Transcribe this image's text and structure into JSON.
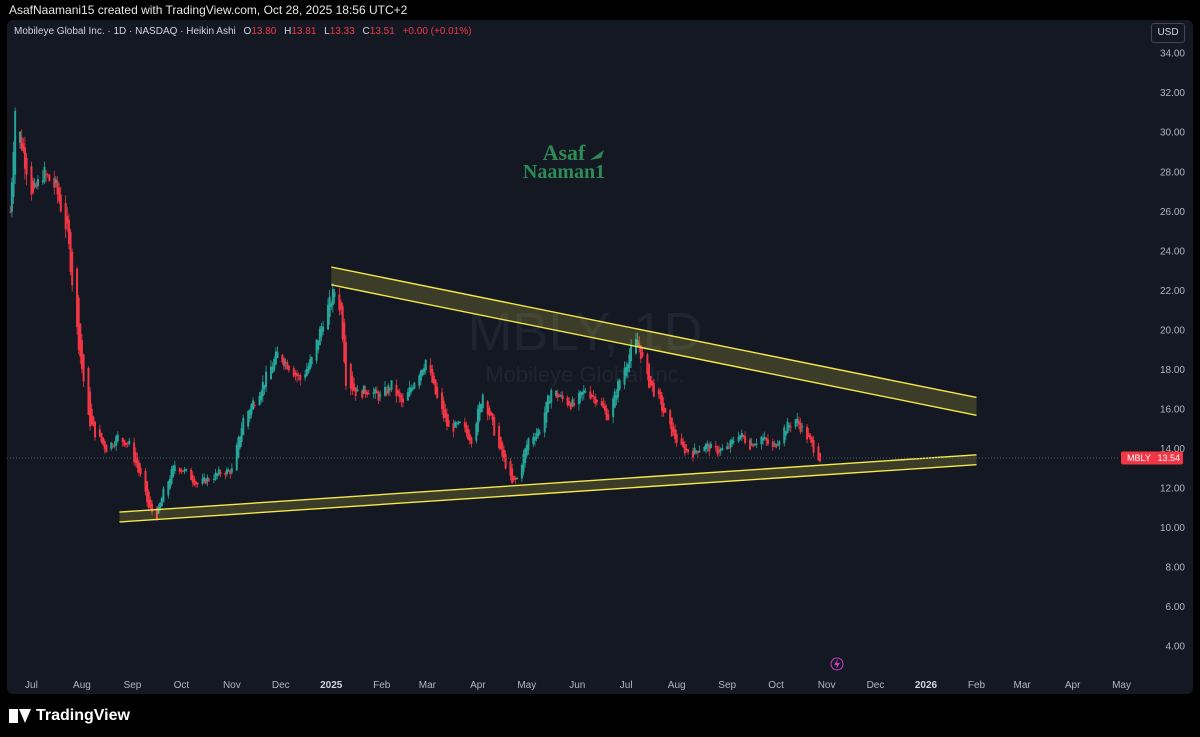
{
  "header": {
    "created_by": "AsafNaamani15 created with TradingView.com, Oct 28, 2025 18:56 UTC+2"
  },
  "legend": {
    "symbol_desc": "Mobileye Global Inc. · 1D · NASDAQ · Heikin Ashi",
    "o_label": "O",
    "o_value": "13.80",
    "h_label": "H",
    "h_value": "13.81",
    "l_label": "L",
    "l_value": "13.33",
    "c_label": "C",
    "c_value": "13.51",
    "change": "+0.00 (+0.01%)"
  },
  "currency_button": "USD",
  "watermark": {
    "symbol": "MBLY, 1D",
    "name": "Mobileye Global Inc.",
    "logo_line1": "Asaf",
    "logo_line2": "Naaman1"
  },
  "price_tag": {
    "symbol": "MBLY",
    "value": "13.54"
  },
  "colors": {
    "background": "#141823",
    "up": "#26a69a",
    "down": "#f23645",
    "channel": "#f5e84a",
    "channel_fill": "rgba(245,232,74,0.18)"
  },
  "footer": {
    "brand": "TradingView"
  },
  "chart_data": {
    "type": "candlestick",
    "chart_style": "Heikin Ashi",
    "timeframe": "1D",
    "yaxis": {
      "ticks": [
        "4.00",
        "6.00",
        "8.00",
        "10.00",
        "12.00",
        "14.00",
        "16.00",
        "18.00",
        "20.00",
        "22.00",
        "24.00",
        "26.00",
        "28.00",
        "30.00",
        "32.00",
        "34.00"
      ],
      "range": [
        2.2,
        35.2
      ]
    },
    "xaxis": {
      "ticks": [
        {
          "label": "Jul",
          "date": "2024-07-01"
        },
        {
          "label": "Aug",
          "date": "2024-08-01"
        },
        {
          "label": "Sep",
          "date": "2024-09-01"
        },
        {
          "label": "Oct",
          "date": "2024-10-01"
        },
        {
          "label": "Nov",
          "date": "2024-11-01"
        },
        {
          "label": "Dec",
          "date": "2024-12-01"
        },
        {
          "label": "2025",
          "date": "2025-01-01"
        },
        {
          "label": "Feb",
          "date": "2025-02-01"
        },
        {
          "label": "Mar",
          "date": "2025-03-01"
        },
        {
          "label": "Apr",
          "date": "2025-04-01"
        },
        {
          "label": "May",
          "date": "2025-05-01"
        },
        {
          "label": "Jun",
          "date": "2025-06-01"
        },
        {
          "label": "Jul",
          "date": "2025-07-01"
        },
        {
          "label": "Aug",
          "date": "2025-08-01"
        },
        {
          "label": "Sep",
          "date": "2025-09-01"
        },
        {
          "label": "Oct",
          "date": "2025-10-01"
        },
        {
          "label": "Nov",
          "date": "2025-11-01"
        },
        {
          "label": "Dec",
          "date": "2025-12-01"
        },
        {
          "label": "2026",
          "date": "2026-01-01"
        },
        {
          "label": "Feb",
          "date": "2026-02-01"
        },
        {
          "label": "Mar",
          "date": "2026-03-01"
        },
        {
          "label": "Apr",
          "date": "2026-04-01"
        },
        {
          "label": "May",
          "date": "2026-05-01"
        }
      ]
    },
    "current_price": 13.54,
    "price_path": [
      {
        "date": "2024-06-18",
        "price": 26.0
      },
      {
        "date": "2024-06-21",
        "price": 31.2
      },
      {
        "date": "2024-06-26",
        "price": 29.0
      },
      {
        "date": "2024-07-02",
        "price": 26.8
      },
      {
        "date": "2024-07-08",
        "price": 28.0
      },
      {
        "date": "2024-07-16",
        "price": 27.2
      },
      {
        "date": "2024-07-23",
        "price": 25.0
      },
      {
        "date": "2024-07-29",
        "price": 20.0
      },
      {
        "date": "2024-08-05",
        "price": 15.5
      },
      {
        "date": "2024-08-09",
        "price": 14.8
      },
      {
        "date": "2024-08-16",
        "price": 14.0
      },
      {
        "date": "2024-08-23",
        "price": 14.6
      },
      {
        "date": "2024-08-30",
        "price": 14.2
      },
      {
        "date": "2024-09-06",
        "price": 12.6
      },
      {
        "date": "2024-09-11",
        "price": 11.0
      },
      {
        "date": "2024-09-16",
        "price": 10.6
      },
      {
        "date": "2024-09-20",
        "price": 11.8
      },
      {
        "date": "2024-09-27",
        "price": 13.2
      },
      {
        "date": "2024-10-04",
        "price": 12.8
      },
      {
        "date": "2024-10-11",
        "price": 12.2
      },
      {
        "date": "2024-10-18",
        "price": 12.5
      },
      {
        "date": "2024-10-25",
        "price": 12.8
      },
      {
        "date": "2024-11-01",
        "price": 12.9
      },
      {
        "date": "2024-11-08",
        "price": 15.5
      },
      {
        "date": "2024-11-15",
        "price": 16.5
      },
      {
        "date": "2024-11-22",
        "price": 17.6
      },
      {
        "date": "2024-11-29",
        "price": 18.8
      },
      {
        "date": "2024-12-06",
        "price": 18.2
      },
      {
        "date": "2024-12-13",
        "price": 17.5
      },
      {
        "date": "2024-12-20",
        "price": 18.5
      },
      {
        "date": "2024-12-27",
        "price": 20.5
      },
      {
        "date": "2025-01-03",
        "price": 22.0
      },
      {
        "date": "2025-01-07",
        "price": 21.0
      },
      {
        "date": "2025-01-10",
        "price": 17.5
      },
      {
        "date": "2025-01-17",
        "price": 16.8
      },
      {
        "date": "2025-01-24",
        "price": 17.0
      },
      {
        "date": "2025-01-31",
        "price": 16.6
      },
      {
        "date": "2025-02-07",
        "price": 17.2
      },
      {
        "date": "2025-02-14",
        "price": 16.2
      },
      {
        "date": "2025-02-21",
        "price": 17.5
      },
      {
        "date": "2025-02-28",
        "price": 18.5
      },
      {
        "date": "2025-03-07",
        "price": 16.5
      },
      {
        "date": "2025-03-14",
        "price": 15.0
      },
      {
        "date": "2025-03-21",
        "price": 15.2
      },
      {
        "date": "2025-03-28",
        "price": 14.5
      },
      {
        "date": "2025-04-04",
        "price": 16.8
      },
      {
        "date": "2025-04-09",
        "price": 15.5
      },
      {
        "date": "2025-04-14",
        "price": 14.0
      },
      {
        "date": "2025-04-18",
        "price": 13.2
      },
      {
        "date": "2025-04-22",
        "price": 12.2
      },
      {
        "date": "2025-04-25",
        "price": 12.5
      },
      {
        "date": "2025-05-02",
        "price": 14.5
      },
      {
        "date": "2025-05-09",
        "price": 15.0
      },
      {
        "date": "2025-05-16",
        "price": 17.0
      },
      {
        "date": "2025-05-23",
        "price": 16.5
      },
      {
        "date": "2025-05-30",
        "price": 16.2
      },
      {
        "date": "2025-06-06",
        "price": 17.0
      },
      {
        "date": "2025-06-13",
        "price": 16.5
      },
      {
        "date": "2025-06-20",
        "price": 15.6
      },
      {
        "date": "2025-06-27",
        "price": 17.5
      },
      {
        "date": "2025-07-03",
        "price": 18.8
      },
      {
        "date": "2025-07-08",
        "price": 19.5
      },
      {
        "date": "2025-07-14",
        "price": 17.5
      },
      {
        "date": "2025-07-21",
        "price": 16.5
      },
      {
        "date": "2025-07-28",
        "price": 15.0
      },
      {
        "date": "2025-08-04",
        "price": 14.0
      },
      {
        "date": "2025-08-11",
        "price": 13.8
      },
      {
        "date": "2025-08-18",
        "price": 14.2
      },
      {
        "date": "2025-08-25",
        "price": 13.9
      },
      {
        "date": "2025-09-01",
        "price": 14.0
      },
      {
        "date": "2025-09-08",
        "price": 14.8
      },
      {
        "date": "2025-09-15",
        "price": 14.2
      },
      {
        "date": "2025-09-22",
        "price": 14.6
      },
      {
        "date": "2025-09-29",
        "price": 14.0
      },
      {
        "date": "2025-10-06",
        "price": 15.0
      },
      {
        "date": "2025-10-13",
        "price": 15.5
      },
      {
        "date": "2025-10-20",
        "price": 14.6
      },
      {
        "date": "2025-10-28",
        "price": 13.5
      }
    ],
    "drawings": {
      "upper_channel": {
        "start": {
          "date": "2025-01-01",
          "price_top": 23.2,
          "price_bottom": 22.3
        },
        "end": {
          "date": "2026-02-01",
          "price_top": 16.6,
          "price_bottom": 15.7
        }
      },
      "lower_channel": {
        "start": {
          "date": "2024-08-24",
          "price_top": 10.8,
          "price_bottom": 10.3
        },
        "end": {
          "date": "2026-02-01",
          "price_top": 13.7,
          "price_bottom": 13.2
        }
      }
    }
  }
}
